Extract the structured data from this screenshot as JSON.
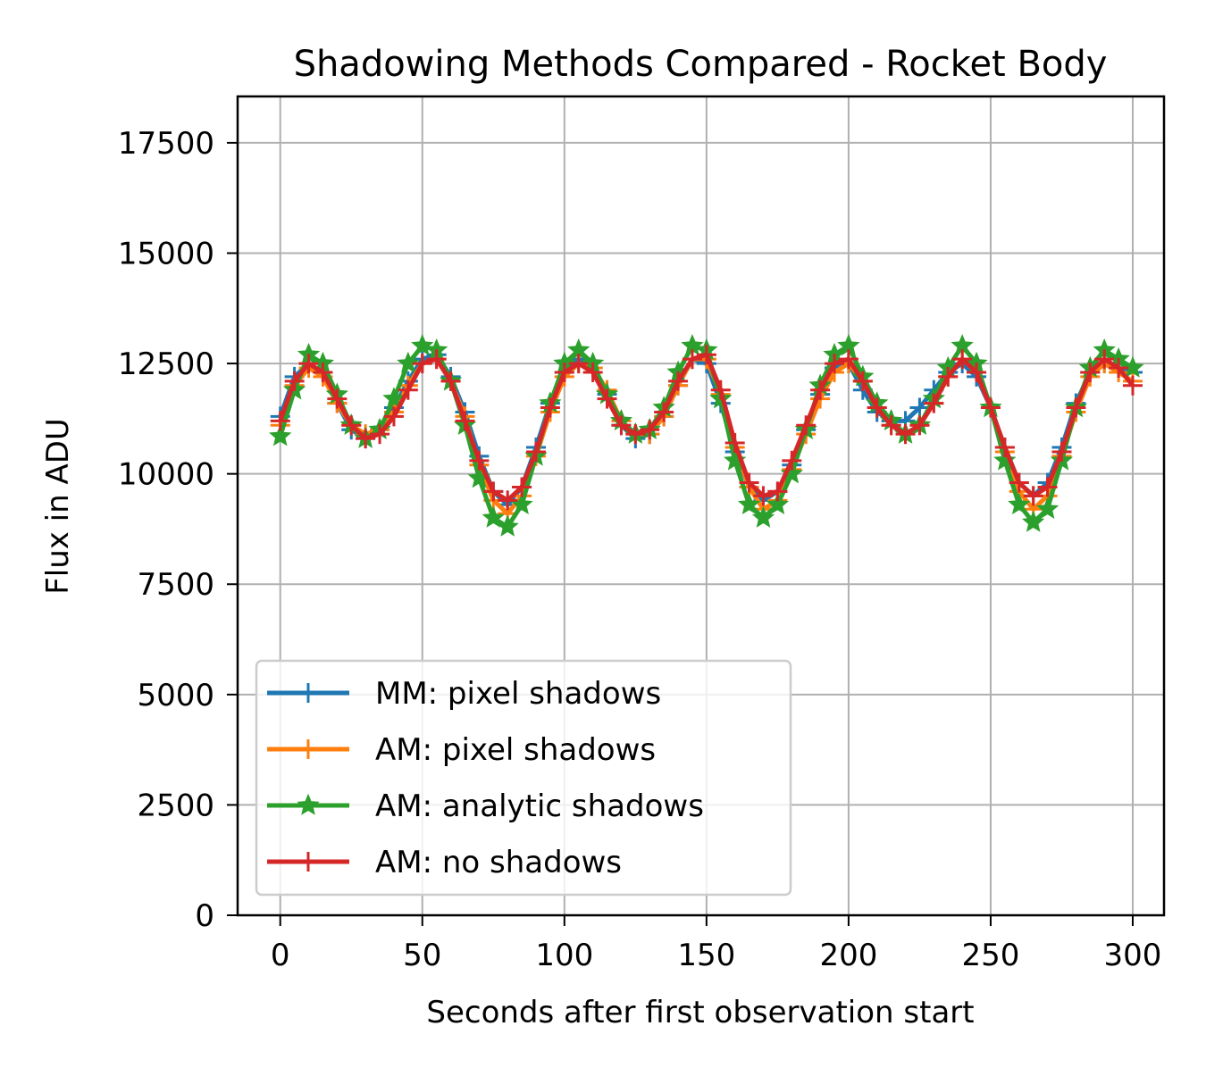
{
  "chart_data": {
    "type": "line",
    "title": "Shadowing Methods Compared - Rocket Body",
    "xlabel": "Seconds after first observation start",
    "ylabel": "Flux in ADU",
    "xlim": [
      -15,
      311
    ],
    "ylim": [
      0,
      18550
    ],
    "xticks": [
      0,
      50,
      100,
      150,
      200,
      250,
      300
    ],
    "yticks": [
      0,
      2500,
      5000,
      7500,
      10000,
      12500,
      15000,
      17500
    ],
    "grid": true,
    "legend_position": "lower-left",
    "x": [
      0,
      5,
      10,
      15,
      20,
      25,
      30,
      35,
      40,
      45,
      50,
      55,
      60,
      65,
      70,
      75,
      80,
      85,
      90,
      95,
      100,
      105,
      110,
      115,
      120,
      125,
      130,
      135,
      140,
      145,
      150,
      155,
      160,
      165,
      170,
      175,
      180,
      185,
      190,
      195,
      200,
      205,
      210,
      215,
      220,
      225,
      230,
      235,
      240,
      245,
      250,
      255,
      260,
      265,
      270,
      275,
      280,
      285,
      290,
      295,
      300
    ],
    "series": [
      {
        "name": "MM: pixel shadows",
        "color": "#1f77b4",
        "marker": "plus",
        "values": [
          11300,
          12200,
          12500,
          12300,
          11600,
          11000,
          10800,
          11000,
          11500,
          12100,
          12600,
          12700,
          12200,
          11400,
          10400,
          9600,
          9300,
          9700,
          10600,
          11600,
          12300,
          12600,
          12400,
          11800,
          11100,
          10800,
          10900,
          11300,
          12000,
          12600,
          12500,
          11600,
          10500,
          9700,
          9400,
          9600,
          10200,
          11000,
          11800,
          12400,
          12500,
          11900,
          11400,
          11200,
          11200,
          11500,
          11900,
          12300,
          12500,
          12200,
          11500,
          10600,
          9800,
          9500,
          9800,
          10600,
          11600,
          12300,
          12500,
          12400,
          12300
        ]
      },
      {
        "name": "AM: pixel shadows",
        "color": "#ff7f0e",
        "marker": "plus",
        "values": [
          11100,
          12000,
          12400,
          12200,
          11600,
          11100,
          10900,
          11000,
          11400,
          12000,
          12500,
          12600,
          12100,
          11300,
          10200,
          9400,
          9100,
          9500,
          10400,
          11400,
          12200,
          12500,
          12400,
          11900,
          11200,
          10900,
          10900,
          11300,
          12000,
          12600,
          12600,
          11800,
          10600,
          9700,
          9200,
          9400,
          10100,
          10900,
          11700,
          12300,
          12500,
          12100,
          11500,
          11100,
          10900,
          11100,
          11600,
          12200,
          12600,
          12300,
          11500,
          10500,
          9600,
          9200,
          9500,
          10400,
          11400,
          12200,
          12500,
          12300,
          12100
        ]
      },
      {
        "name": "AM: analytic shadows",
        "color": "#2ca02c",
        "marker": "star",
        "values": [
          10850,
          11900,
          12700,
          12500,
          11800,
          11100,
          10800,
          11000,
          11700,
          12500,
          12900,
          12800,
          12100,
          11100,
          9900,
          9000,
          8800,
          9300,
          10400,
          11600,
          12500,
          12800,
          12500,
          11800,
          11200,
          10900,
          11000,
          11500,
          12300,
          12900,
          12800,
          11700,
          10300,
          9300,
          9000,
          9300,
          10000,
          11000,
          12000,
          12700,
          12900,
          12200,
          11600,
          11200,
          10900,
          11100,
          11700,
          12400,
          12900,
          12500,
          11500,
          10300,
          9300,
          8900,
          9200,
          10300,
          11500,
          12400,
          12800,
          12600,
          12400
        ]
      },
      {
        "name": "AM: no shadows",
        "color": "#d62728",
        "marker": "plus",
        "values": [
          11200,
          12100,
          12500,
          12300,
          11700,
          11100,
          10800,
          10900,
          11300,
          11900,
          12500,
          12600,
          12100,
          11200,
          10300,
          9600,
          9400,
          9700,
          10500,
          11500,
          12300,
          12500,
          12300,
          11700,
          11100,
          10900,
          11000,
          11400,
          12100,
          12600,
          12700,
          11900,
          10700,
          9800,
          9500,
          9600,
          10300,
          11100,
          11900,
          12500,
          12600,
          12100,
          11500,
          11100,
          10900,
          11100,
          11600,
          12200,
          12600,
          12300,
          11500,
          10600,
          9800,
          9500,
          9700,
          10500,
          11500,
          12300,
          12600,
          12400,
          12000
        ]
      }
    ]
  }
}
